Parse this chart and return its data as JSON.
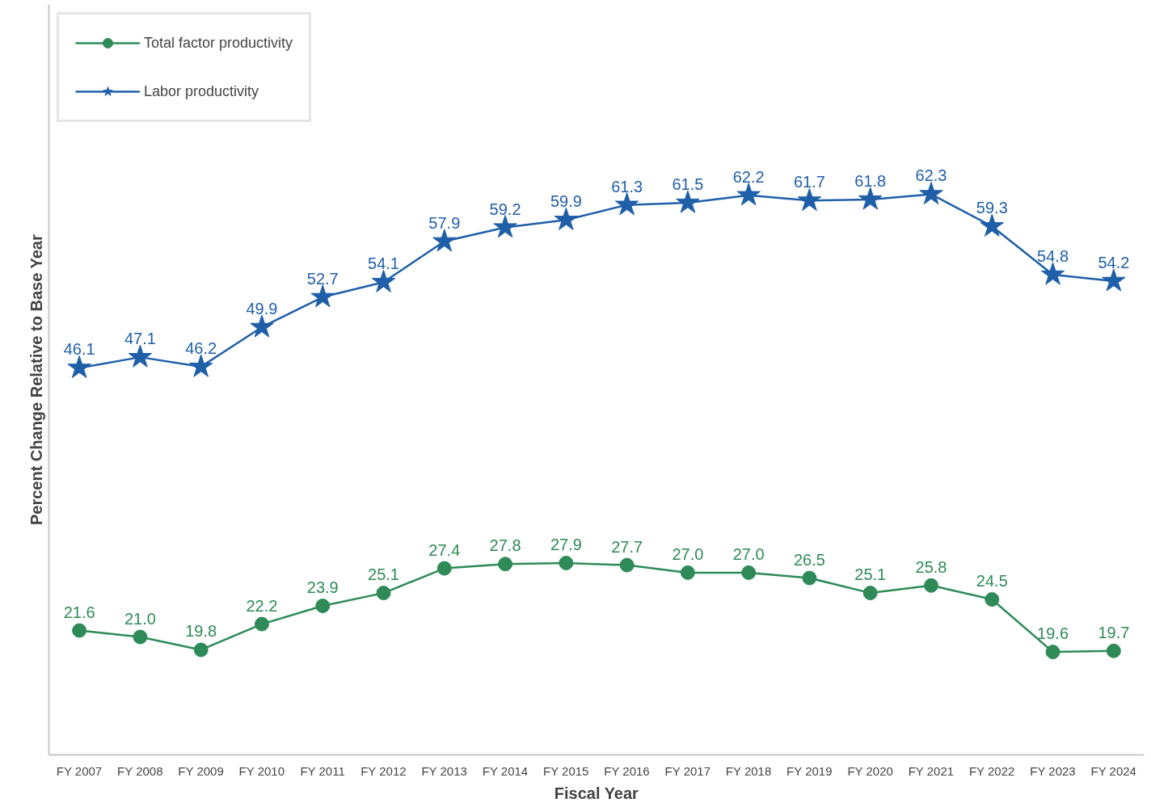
{
  "chart_data": {
    "type": "line",
    "xlabel": "Fiscal Year",
    "ylabel": "Percent Change Relative to Base Year",
    "categories": [
      "FY 2007",
      "FY 2008",
      "FY 2009",
      "FY 2010",
      "FY 2011",
      "FY 2012",
      "FY 2013",
      "FY 2014",
      "FY 2015",
      "FY 2016",
      "FY 2017",
      "FY 2018",
      "FY 2019",
      "FY 2020",
      "FY 2021",
      "FY 2022",
      "FY 2023",
      "FY 2024"
    ],
    "series": [
      {
        "name": "Total factor productivity",
        "color": "#2e8b57",
        "marker": "circle",
        "values": [
          21.6,
          21.0,
          19.8,
          22.2,
          23.9,
          25.1,
          27.4,
          27.8,
          27.9,
          27.7,
          27.0,
          27.0,
          26.5,
          25.1,
          25.8,
          24.5,
          19.6,
          19.7
        ],
        "value_labels": [
          "21.6",
          "21.0",
          "19.8",
          "22.2",
          "23.9",
          "25.1",
          "27.4",
          "27.8",
          "27.9",
          "27.7",
          "27.0",
          "27.0",
          "26.5",
          "25.1",
          "25.8",
          "24.5",
          "19.6",
          "19.7"
        ]
      },
      {
        "name": "Labor productivity",
        "color": "#1f5fa8",
        "marker": "star",
        "values": [
          46.1,
          47.1,
          46.2,
          49.9,
          52.7,
          54.1,
          57.9,
          59.2,
          59.9,
          61.3,
          61.5,
          62.2,
          61.7,
          61.8,
          62.3,
          59.3,
          54.8,
          54.2
        ],
        "value_labels": [
          "46.1",
          "47.1",
          "46.2",
          "49.9",
          "52.7",
          "54.1",
          "57.9",
          "59.2",
          "59.9",
          "61.3",
          "61.5",
          "62.2",
          "61.7",
          "61.8",
          "62.3",
          "59.3",
          "54.8",
          "54.2"
        ]
      }
    ],
    "ylim": [
      10,
      80
    ],
    "tick_labels": "x",
    "grid": false,
    "legend": "top left",
    "line_style": "solid"
  }
}
